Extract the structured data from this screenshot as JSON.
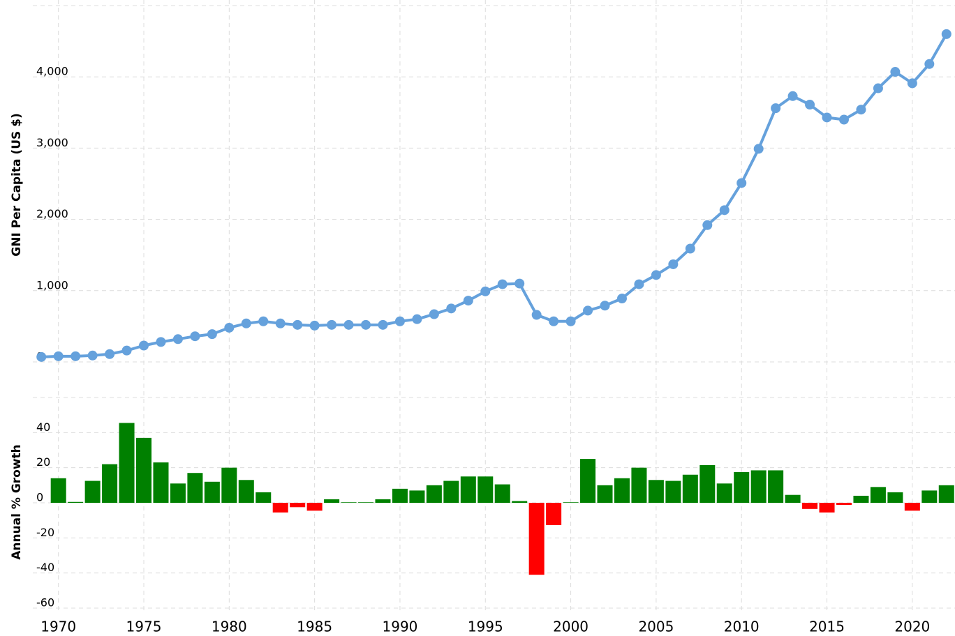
{
  "chart_data": [
    {
      "type": "line",
      "ylabel": "GNI Per Capita (US $)",
      "color": "#65a1dc",
      "x": [
        1969,
        1970,
        1971,
        1972,
        1973,
        1974,
        1975,
        1976,
        1977,
        1978,
        1979,
        1980,
        1981,
        1982,
        1983,
        1984,
        1985,
        1986,
        1987,
        1988,
        1989,
        1990,
        1991,
        1992,
        1993,
        1994,
        1995,
        1996,
        1997,
        1998,
        1999,
        2000,
        2001,
        2002,
        2003,
        2004,
        2005,
        2006,
        2007,
        2008,
        2009,
        2010,
        2011,
        2012,
        2013,
        2014,
        2015,
        2016,
        2017,
        2018,
        2019,
        2020,
        2021,
        2022
      ],
      "values": [
        70,
        80,
        80,
        90,
        110,
        160,
        230,
        280,
        320,
        360,
        390,
        480,
        540,
        570,
        540,
        520,
        510,
        520,
        520,
        520,
        520,
        570,
        600,
        670,
        750,
        860,
        990,
        1090,
        1100,
        660,
        570,
        570,
        720,
        790,
        890,
        1090,
        1220,
        1370,
        1590,
        1920,
        2130,
        2510,
        2990,
        3560,
        3730,
        3610,
        3430,
        3400,
        3540,
        3840,
        4070,
        3910,
        4180,
        4600
      ],
      "xlim": [
        1968.5,
        2022.5
      ],
      "ylim": [
        0,
        5000
      ],
      "yticks": [
        0,
        {
          "value": 1000,
          "label": "1,000"
        },
        {
          "value": 2000,
          "label": "2,000"
        },
        {
          "value": 3000,
          "label": "3,000"
        },
        {
          "value": 4000,
          "label": "4,000"
        }
      ],
      "grid": true
    },
    {
      "type": "bar",
      "ylabel": "Annual % Growth",
      "positive_color": "#008000",
      "negative_color": "#ff0000",
      "x": [
        1970,
        1971,
        1972,
        1973,
        1974,
        1975,
        1976,
        1977,
        1978,
        1979,
        1980,
        1981,
        1982,
        1983,
        1984,
        1985,
        1986,
        1987,
        1988,
        1989,
        1990,
        1991,
        1992,
        1993,
        1994,
        1995,
        1996,
        1997,
        1998,
        1999,
        2000,
        2001,
        2002,
        2003,
        2004,
        2005,
        2006,
        2007,
        2008,
        2009,
        2010,
        2011,
        2012,
        2013,
        2014,
        2015,
        2016,
        2017,
        2018,
        2019,
        2020,
        2021,
        2022
      ],
      "values": [
        14,
        0.5,
        12.5,
        22,
        45.5,
        37,
        23,
        11,
        17,
        12,
        20,
        13,
        6,
        -5.5,
        -2.5,
        -4.5,
        2,
        0.3,
        0.3,
        2,
        8,
        7,
        10,
        12.5,
        15,
        15,
        10.5,
        1,
        -41,
        -12.7,
        0.3,
        25,
        10,
        14,
        20,
        13,
        12.5,
        16,
        21.5,
        11,
        17.5,
        18.5,
        18.5,
        4.5,
        -3.5,
        -5.5,
        -1.2,
        4,
        9,
        6,
        -4.5,
        7,
        10
      ],
      "xlim": [
        1968.5,
        2022.5
      ],
      "ylim": [
        -60,
        60
      ],
      "yticks": [
        -60,
        -40,
        -20,
        0,
        20,
        40
      ],
      "xticks": [
        1970,
        1975,
        1980,
        1985,
        1990,
        1995,
        2000,
        2005,
        2010,
        2015,
        2020
      ],
      "grid": true
    }
  ]
}
